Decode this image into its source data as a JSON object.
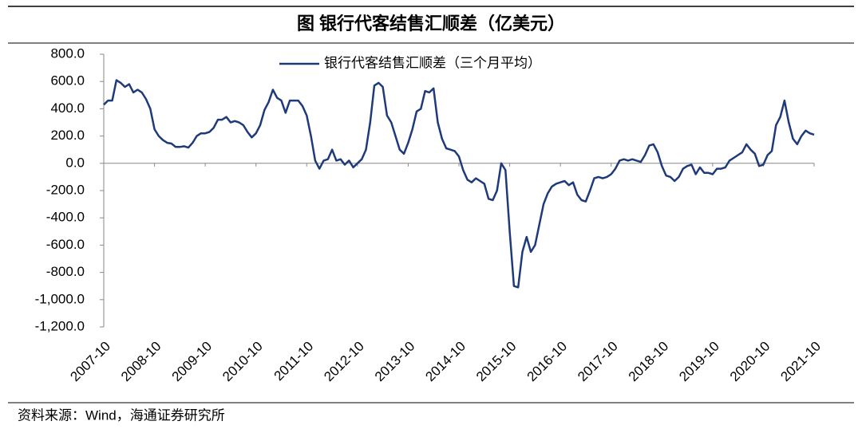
{
  "chart_data": {
    "type": "line",
    "title": "图  银行代客结售汇顺差（亿美元）",
    "source": "资料来源：Wind，海通证券研究所",
    "categories": [
      "2007-10",
      null,
      null,
      null,
      null,
      null,
      null,
      null,
      null,
      null,
      null,
      null,
      "2008-10",
      null,
      null,
      null,
      null,
      null,
      null,
      null,
      null,
      null,
      null,
      null,
      "2009-10",
      null,
      null,
      null,
      null,
      null,
      null,
      null,
      null,
      null,
      null,
      null,
      "2010-10",
      null,
      null,
      null,
      null,
      null,
      null,
      null,
      null,
      null,
      null,
      null,
      "2011-10",
      null,
      null,
      null,
      null,
      null,
      null,
      null,
      null,
      null,
      null,
      null,
      "2012-10",
      null,
      null,
      null,
      null,
      null,
      null,
      null,
      null,
      null,
      null,
      null,
      "2013-10",
      null,
      null,
      null,
      null,
      null,
      null,
      null,
      null,
      null,
      null,
      null,
      "2014-10",
      null,
      null,
      null,
      null,
      null,
      null,
      null,
      null,
      null,
      null,
      null,
      "2015-10",
      null,
      null,
      null,
      null,
      null,
      null,
      null,
      null,
      null,
      null,
      null,
      "2016-10",
      null,
      null,
      null,
      null,
      null,
      null,
      null,
      null,
      null,
      null,
      null,
      "2017-10",
      null,
      null,
      null,
      null,
      null,
      null,
      null,
      null,
      null,
      null,
      null,
      "2018-10",
      null,
      null,
      null,
      null,
      null,
      null,
      null,
      null,
      null,
      null,
      null,
      "2019-10",
      null,
      null,
      null,
      null,
      null,
      null,
      null,
      null,
      null,
      null,
      null,
      "2020-10",
      null,
      null,
      null,
      null,
      null,
      null,
      null,
      null,
      null,
      null,
      null,
      "2021-10"
    ],
    "series": [
      {
        "name": "银行代客结售汇顺差（三个月平均）",
        "color": "#1f3a7a",
        "values": [
          430,
          460,
          460,
          610,
          590,
          560,
          580,
          520,
          540,
          520,
          470,
          400,
          250,
          200,
          170,
          150,
          145,
          120,
          120,
          125,
          115,
          150,
          200,
          220,
          220,
          230,
          260,
          320,
          320,
          340,
          300,
          310,
          300,
          280,
          230,
          190,
          220,
          280,
          390,
          450,
          540,
          480,
          460,
          370,
          460,
          460,
          460,
          420,
          350,
          200,
          20,
          -40,
          20,
          30,
          100,
          20,
          30,
          -10,
          20,
          -30,
          0,
          30,
          100,
          300,
          570,
          590,
          560,
          350,
          300,
          200,
          100,
          70,
          150,
          250,
          380,
          400,
          530,
          520,
          550,
          300,
          180,
          110,
          100,
          90,
          50,
          -50,
          -120,
          -140,
          -110,
          -130,
          -150,
          -260,
          -270,
          -200,
          0,
          -50,
          -500,
          -900,
          -910,
          -650,
          -540,
          -650,
          -600,
          -450,
          -300,
          -220,
          -170,
          -150,
          -140,
          -130,
          -160,
          -140,
          -230,
          -270,
          -280,
          -200,
          -110,
          -100,
          -110,
          -100,
          -80,
          -40,
          20,
          30,
          20,
          30,
          20,
          10,
          60,
          130,
          140,
          80,
          -20,
          -90,
          -100,
          -130,
          -100,
          -40,
          -20,
          -10,
          -80,
          -30,
          -70,
          -70,
          -80,
          -40,
          -40,
          -30,
          20,
          40,
          60,
          80,
          140,
          100,
          70,
          -20,
          -10,
          60,
          90,
          280,
          340,
          460,
          300,
          180,
          140,
          200,
          240,
          220,
          210
        ]
      }
    ],
    "ylim": [
      -1200,
      800
    ],
    "yticks": [
      {
        "value": -1200,
        "label": "-1,200.0"
      },
      {
        "value": -1000,
        "label": "-1,000.0"
      },
      {
        "value": -800,
        "label": "-800.0"
      },
      {
        "value": -600,
        "label": "-600.0"
      },
      {
        "value": -400,
        "label": "-400.0"
      },
      {
        "value": -200,
        "label": "-200.0"
      },
      {
        "value": 0,
        "label": "0.0"
      },
      {
        "value": 200,
        "label": "200.0"
      },
      {
        "value": 400,
        "label": "400.0"
      },
      {
        "value": 600,
        "label": "600.0"
      },
      {
        "value": 800,
        "label": "800.0"
      }
    ],
    "grid": false,
    "legend": "top"
  }
}
